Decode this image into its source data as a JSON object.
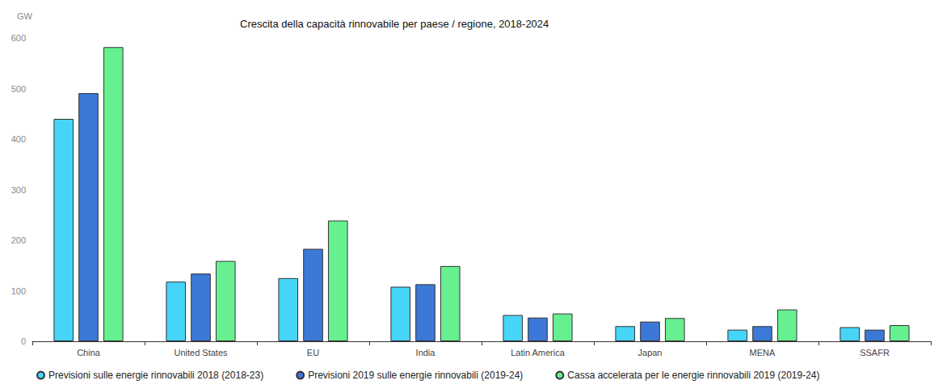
{
  "chart_data": {
    "type": "bar",
    "title": "Crescita della capacità rinnovabile per paese / regione, 2018-2024",
    "ylabel": "GW",
    "categories": [
      "China",
      "United States",
      "EU",
      "India",
      "Latin America",
      "Japan",
      "MENA",
      "SSAFR"
    ],
    "series": [
      {
        "name": "Previsioni sulle energie rinnovabili 2018 (2018-23)",
        "color": "#47d4f9",
        "values": [
          440,
          118,
          125,
          108,
          52,
          30,
          23,
          28
        ]
      },
      {
        "name": "Previsioni 2019 sulle energie rinnovabili (2019-24)",
        "color": "#3c78d8",
        "values": [
          491,
          134,
          183,
          113,
          47,
          39,
          30,
          23
        ]
      },
      {
        "name": "Cassa accelerata per le energie rinnovabili 2019 (2019-24)",
        "color": "#66f08f",
        "values": [
          582,
          159,
          239,
          149,
          55,
          46,
          63,
          32
        ]
      }
    ],
    "ylim": [
      0,
      600
    ],
    "yticks": [
      0,
      100,
      200,
      300,
      400,
      500,
      600
    ],
    "grid": false,
    "legend": "bottom-left"
  }
}
